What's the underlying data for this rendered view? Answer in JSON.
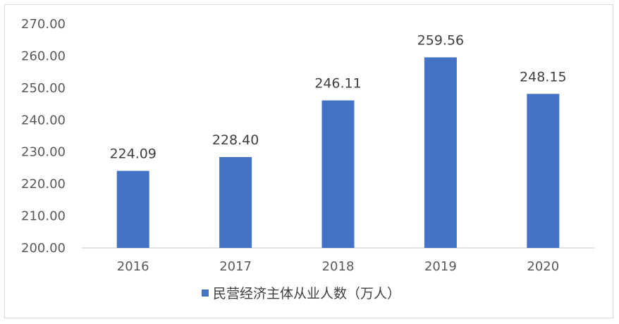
{
  "chart_data": {
    "type": "bar",
    "categories": [
      "2016",
      "2017",
      "2018",
      "2019",
      "2020"
    ],
    "series": [
      {
        "name": "民营经济主体从业人数（万人）",
        "values": [
          224.09,
          228.4,
          246.11,
          259.56,
          248.15
        ],
        "labels": [
          "224.09",
          "228.40",
          "246.11",
          "259.56",
          "248.15"
        ],
        "color": "#4472c4"
      }
    ],
    "ylim": [
      200,
      270
    ],
    "yticks": [
      "200.00",
      "210.00",
      "220.00",
      "230.00",
      "240.00",
      "250.00",
      "260.00",
      "270.00"
    ],
    "grid": false,
    "legend": "bottom-center",
    "title": "",
    "xlabel": "",
    "ylabel": ""
  }
}
